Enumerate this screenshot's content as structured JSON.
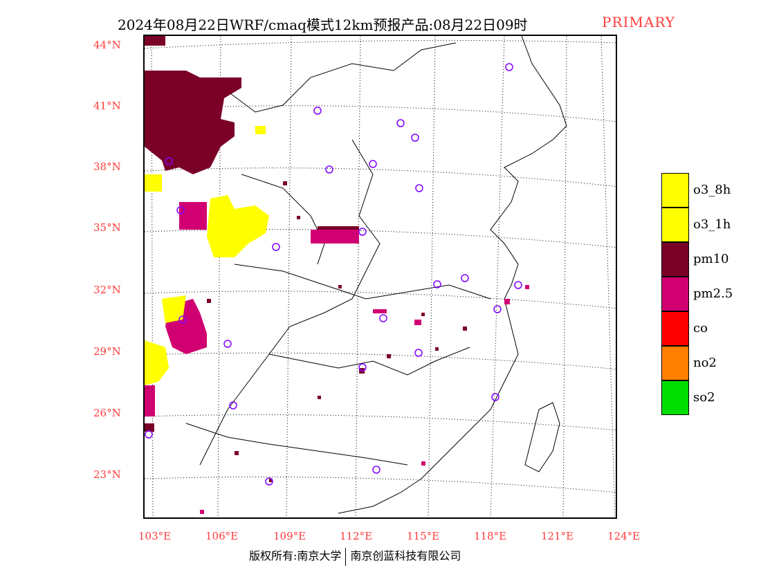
{
  "title": {
    "text": "2024年08月22日WRF/cmaq模式12km预报产品:08月22日09时",
    "tag": "PRIMARY",
    "tag_color": "#ff3b3b"
  },
  "axes": {
    "lat_labels": [
      "44°N",
      "41°N",
      "38°N",
      "35°N",
      "32°N",
      "29°N",
      "26°N",
      "23°N"
    ],
    "lon_labels": [
      "103°E",
      "106°E",
      "109°E",
      "112°E",
      "115°E",
      "118°E",
      "121°E",
      "124°E"
    ],
    "label_color": "#ff3b3b"
  },
  "legend": {
    "items": [
      {
        "label": "o3_8h",
        "color": "#ffff00"
      },
      {
        "label": "o3_1h",
        "color": "#ffff00"
      },
      {
        "label": "pm10",
        "color": "#7b0028"
      },
      {
        "label": "pm2.5",
        "color": "#d10072"
      },
      {
        "label": "co",
        "color": "#ff0000"
      },
      {
        "label": "no2",
        "color": "#ff7f00"
      },
      {
        "label": "so2",
        "color": "#00dd00"
      }
    ]
  },
  "credit": {
    "left": "版权所有:南京大学",
    "right": "南京创蓝科技有限公司"
  },
  "map": {
    "region": "China (eastern)",
    "station_marker_color": "#8000ff"
  }
}
